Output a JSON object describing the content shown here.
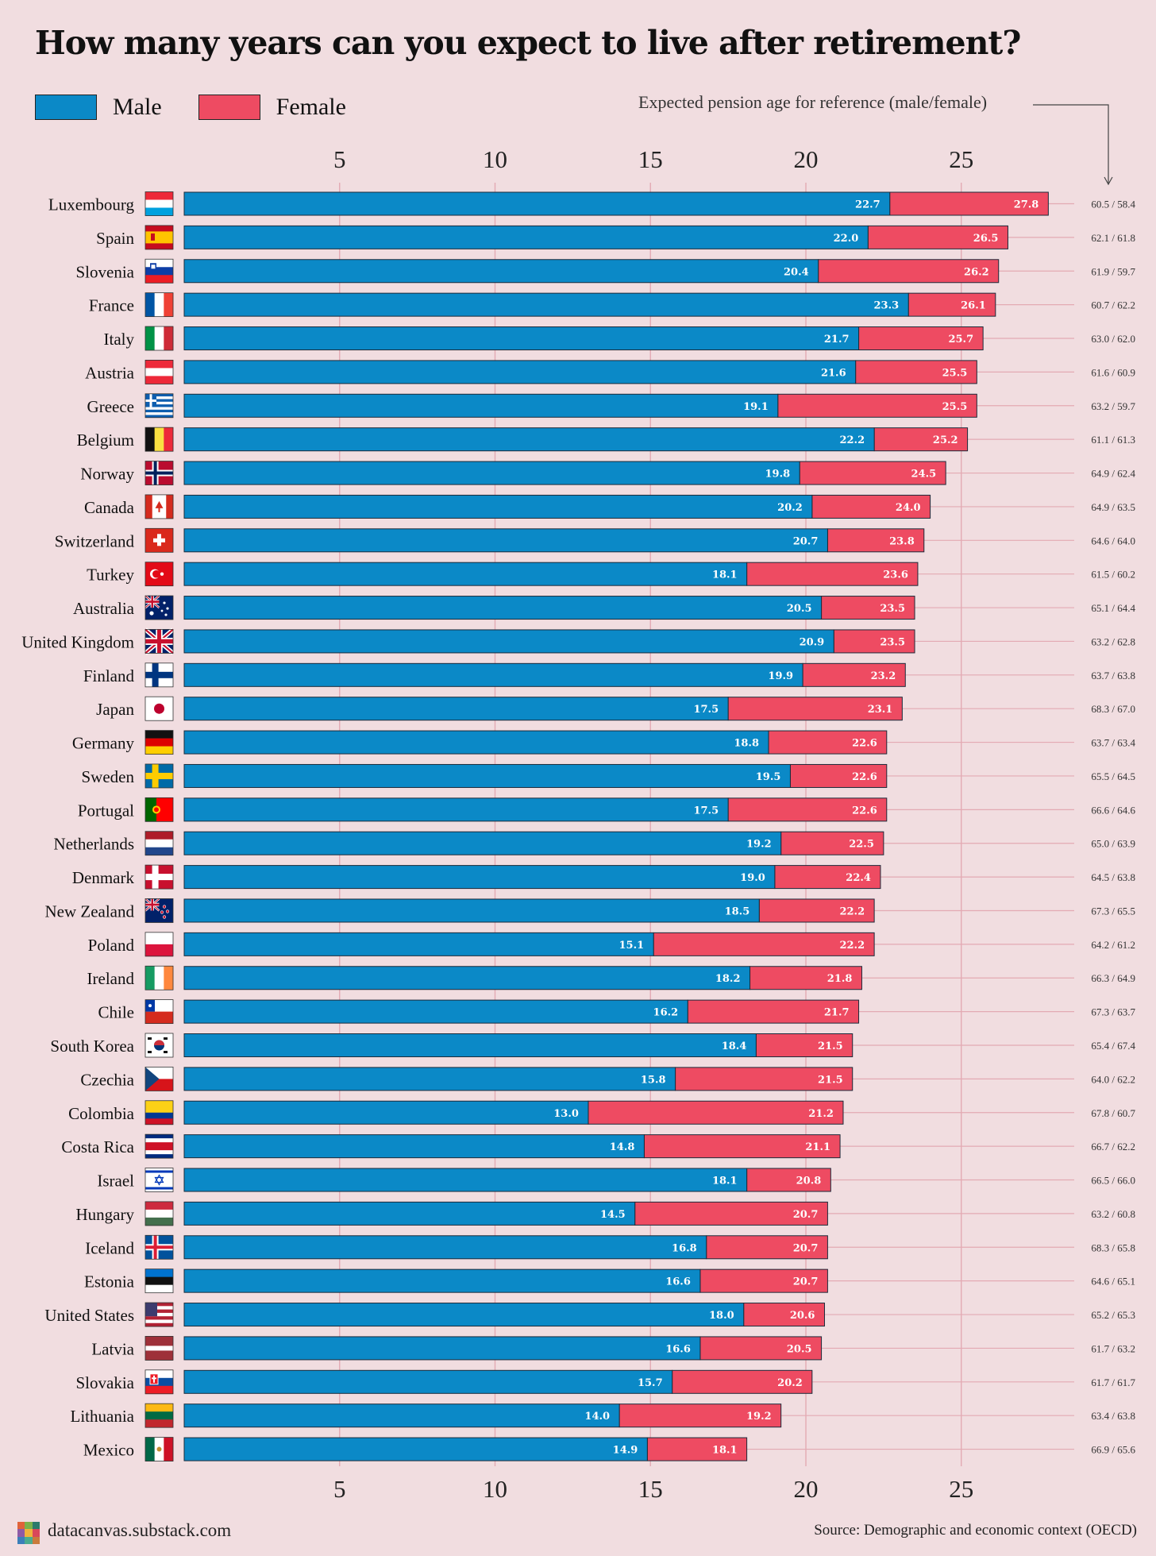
{
  "title": "How many years can you expect to live after retirement?",
  "legend": {
    "male": "Male",
    "female": "Female"
  },
  "pension_note": "Expected pension age for reference (male/female)",
  "footer": {
    "site": "datacanvas.substack.com",
    "source": "Source: Demographic and economic context (OECD)"
  },
  "colors": {
    "male": "#0b89c7",
    "female": "#ee4b62",
    "background": "#f1dde0",
    "grid": "#e3aab3",
    "outline": "#1c2a3a"
  },
  "chart_data": {
    "type": "bar",
    "orientation": "horizontal",
    "title": "How many years can you expect to live after retirement?",
    "xlabel": "",
    "ylabel": "",
    "xlim": [
      0,
      28
    ],
    "xticks": [
      5,
      10,
      15,
      20,
      25
    ],
    "xtick_labels": [
      "5",
      "10",
      "15",
      "20",
      "25"
    ],
    "categories": [
      "Luxembourg",
      "Spain",
      "Slovenia",
      "France",
      "Italy",
      "Austria",
      "Greece",
      "Belgium",
      "Norway",
      "Canada",
      "Switzerland",
      "Turkey",
      "Australia",
      "United Kingdom",
      "Finland",
      "Japan",
      "Germany",
      "Sweden",
      "Portugal",
      "Netherlands",
      "Denmark",
      "New Zealand",
      "Poland",
      "Ireland",
      "Chile",
      "South Korea",
      "Czechia",
      "Colombia",
      "Costa Rica",
      "Israel",
      "Hungary",
      "Iceland",
      "Estonia",
      "United States",
      "Latvia",
      "Slovakia",
      "Lithuania",
      "Mexico"
    ],
    "series": [
      {
        "name": "Male",
        "values": [
          22.7,
          22.0,
          20.4,
          23.3,
          21.7,
          21.6,
          19.1,
          22.2,
          19.8,
          20.2,
          20.7,
          18.1,
          20.5,
          20.9,
          19.9,
          17.5,
          18.8,
          19.5,
          17.5,
          19.2,
          19.0,
          18.5,
          15.1,
          18.2,
          16.2,
          18.4,
          15.8,
          13.0,
          14.8,
          18.1,
          14.5,
          16.8,
          16.6,
          18.0,
          16.6,
          15.7,
          14.0,
          14.9
        ],
        "labels": [
          "22.7",
          "22.0",
          "20.4",
          "23.3",
          "21.7",
          "21.6",
          "19.1",
          "22.2",
          "19.8",
          "20.2",
          "20.7",
          "18.1",
          "20.5",
          "20.9",
          "19.9",
          "17.5",
          "18.8",
          "19.5",
          "17.5",
          "19.2",
          "19.0",
          "18.5",
          "15.1",
          "18.2",
          "16.2",
          "18.4",
          "15.8",
          "13.0",
          "14.8",
          "18.1",
          "14.5",
          "16.8",
          "16.6",
          "18.0",
          "16.6",
          "15.7",
          "14.0",
          "14.9"
        ]
      },
      {
        "name": "Female",
        "values": [
          27.8,
          26.5,
          26.2,
          26.1,
          25.7,
          25.5,
          25.5,
          25.2,
          24.5,
          24.0,
          23.8,
          23.6,
          23.5,
          23.5,
          23.2,
          23.1,
          22.6,
          22.6,
          22.6,
          22.5,
          22.4,
          22.2,
          22.2,
          21.8,
          21.7,
          21.5,
          21.5,
          21.2,
          21.1,
          20.8,
          20.7,
          20.7,
          20.7,
          20.6,
          20.5,
          20.2,
          19.2,
          18.1
        ],
        "labels": [
          "27.8",
          "26.5",
          "26.2",
          "26.1",
          "25.7",
          "25.5",
          "25.5",
          "25.2",
          "24.5",
          "24.0",
          "23.8",
          "23.6",
          "23.5",
          "23.5",
          "23.2",
          "23.1",
          "22.6",
          "22.6",
          "22.6",
          "22.5",
          "22.4",
          "22.2",
          "22.2",
          "21.8",
          "21.7",
          "21.5",
          "21.5",
          "21.2",
          "21.1",
          "20.8",
          "20.7",
          "20.7",
          "20.7",
          "20.6",
          "20.5",
          "20.2",
          "19.2",
          "18.1"
        ]
      }
    ],
    "pension_age": [
      "60.5 / 58.4",
      "62.1 / 61.8",
      "61.9 / 59.7",
      "60.7 / 62.2",
      "63.0 / 62.0",
      "61.6 / 60.9",
      "63.2 / 59.7",
      "61.1 / 61.3",
      "64.9 / 62.4",
      "64.9 / 63.5",
      "64.6 / 64.0",
      "61.5 / 60.2",
      "65.1 / 64.4",
      "63.2 / 62.8",
      "63.7 / 63.8",
      "68.3 / 67.0",
      "63.7 / 63.4",
      "65.5 / 64.5",
      "66.6 / 64.6",
      "65.0 / 63.9",
      "64.5 / 63.8",
      "67.3 / 65.5",
      "64.2 / 61.2",
      "66.3 / 64.9",
      "67.3 / 63.7",
      "65.4 / 67.4",
      "64.0 / 62.2",
      "67.8 / 60.7",
      "66.7 / 62.2",
      "66.5 / 66.0",
      "63.2 / 60.8",
      "68.3 / 65.8",
      "64.6 / 65.1",
      "65.2 / 65.3",
      "61.7 / 63.2",
      "61.7 / 61.7",
      "63.4 / 63.8",
      "66.9 / 65.6"
    ],
    "flags": [
      "luxembourg-flag-icon",
      "spain-flag-icon",
      "slovenia-flag-icon",
      "france-flag-icon",
      "italy-flag-icon",
      "austria-flag-icon",
      "greece-flag-icon",
      "belgium-flag-icon",
      "norway-flag-icon",
      "canada-flag-icon",
      "switzerland-flag-icon",
      "turkey-flag-icon",
      "australia-flag-icon",
      "united-kingdom-flag-icon",
      "finland-flag-icon",
      "japan-flag-icon",
      "germany-flag-icon",
      "sweden-flag-icon",
      "portugal-flag-icon",
      "netherlands-flag-icon",
      "denmark-flag-icon",
      "new-zealand-flag-icon",
      "poland-flag-icon",
      "ireland-flag-icon",
      "chile-flag-icon",
      "south-korea-flag-icon",
      "czechia-flag-icon",
      "colombia-flag-icon",
      "costa-rica-flag-icon",
      "israel-flag-icon",
      "hungary-flag-icon",
      "iceland-flag-icon",
      "estonia-flag-icon",
      "united-states-flag-icon",
      "latvia-flag-icon",
      "slovakia-flag-icon",
      "lithuania-flag-icon",
      "mexico-flag-icon"
    ],
    "legend_position": "top-left",
    "grid": true
  }
}
